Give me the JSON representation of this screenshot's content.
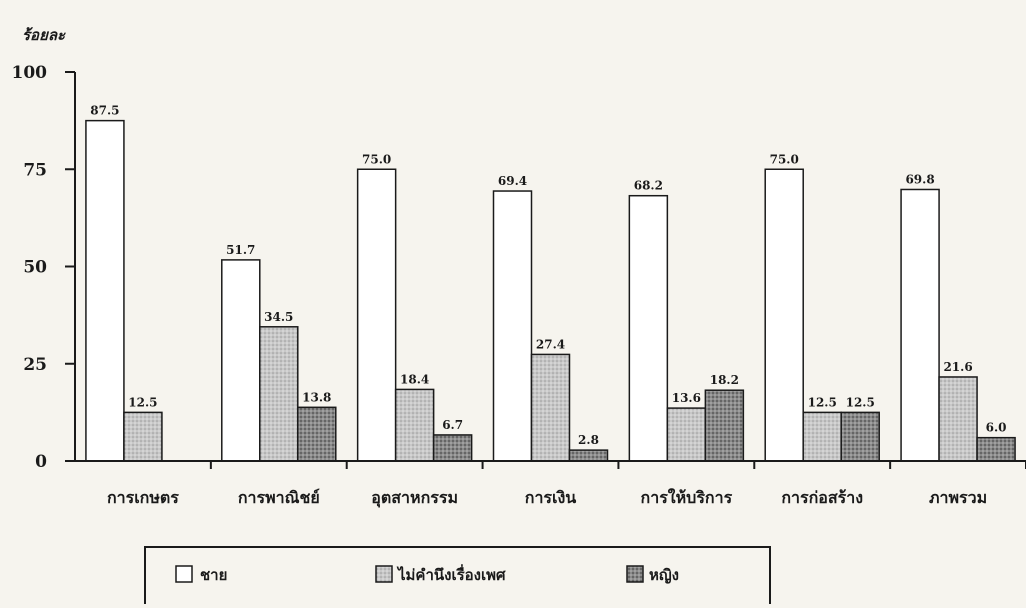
{
  "chart_data": {
    "type": "bar",
    "title": "",
    "ylabel": "ร้อยละ",
    "xlabel": "",
    "ylim": [
      0,
      100
    ],
    "yticks": [
      0,
      25,
      50,
      75,
      100
    ],
    "grid": false,
    "legend_position": "bottom",
    "categories": [
      "การเกษตร",
      "การพาณิชย์",
      "อุตสาหกรรม",
      "การเงิน",
      "การให้บริการ",
      "การก่อสร้าง",
      "ภาพรวม"
    ],
    "series": [
      {
        "name": "ชาย",
        "color": "#ffffff",
        "pattern": "plain",
        "values": [
          87.5,
          51.7,
          75.0,
          69.4,
          68.2,
          75.0,
          69.8
        ],
        "labels": [
          "87.5",
          "51.7",
          "75.0",
          "69.4",
          "68.2",
          "75.0",
          "69.8"
        ]
      },
      {
        "name": "ไม่คำนึงเรื่องเพศ",
        "color": "#c8c8c8",
        "pattern": "light-dots",
        "values": [
          12.5,
          34.5,
          18.4,
          27.4,
          13.6,
          12.5,
          21.6
        ],
        "labels": [
          "12.5",
          "34.5",
          "18.4",
          "27.4",
          "13.6",
          "12.5",
          "21.6"
        ]
      },
      {
        "name": "หญิง",
        "color": "#8a8a8a",
        "pattern": "dark-dots",
        "values": [
          0,
          13.8,
          6.7,
          2.8,
          18.2,
          12.5,
          6.0
        ],
        "labels": [
          "",
          "13.8",
          "6.7",
          "2.8",
          "18.2",
          "12.5",
          "6.0"
        ]
      }
    ]
  }
}
